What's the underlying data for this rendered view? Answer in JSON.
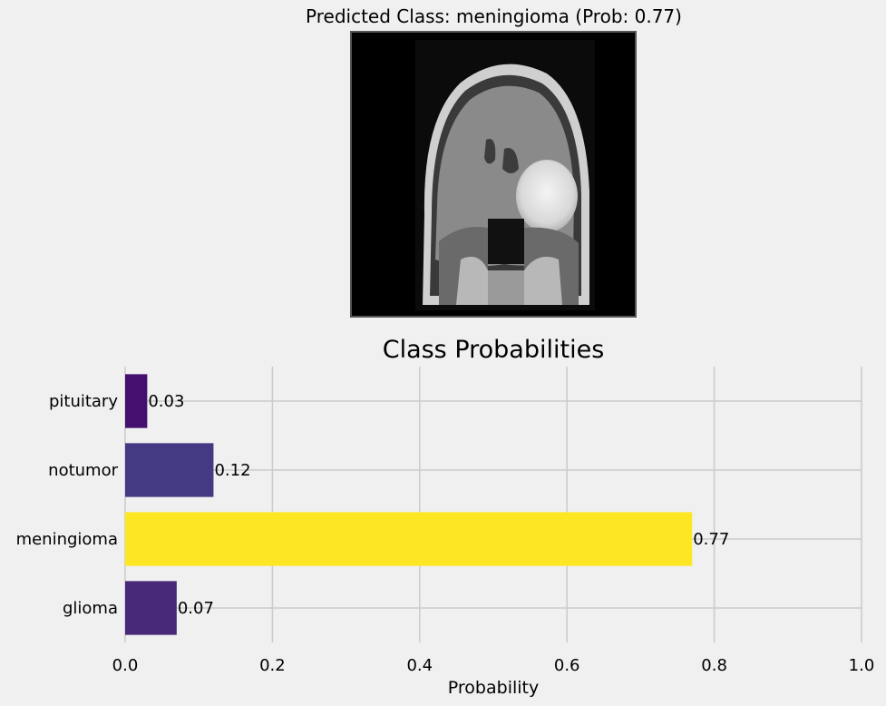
{
  "figure_title": "Predicted Class: meningioma (Prob: 0.77)",
  "image": {
    "icon": "mri-brain-scan-image"
  },
  "chart_data": {
    "type": "bar",
    "orientation": "horizontal",
    "title": "Class Probabilities",
    "xlabel": "Probability",
    "ylabel": "",
    "categories": [
      "glioma",
      "meningioma",
      "notumor",
      "pituitary"
    ],
    "values": [
      0.07,
      0.77,
      0.12,
      0.03
    ],
    "value_labels": [
      "0.07",
      "0.77",
      "0.12",
      "0.03"
    ],
    "colors": [
      "#482878",
      "#fde725",
      "#443a83",
      "#440f6e"
    ],
    "xlim": [
      0,
      1.0
    ],
    "xticks": [
      0.0,
      0.2,
      0.4,
      0.6,
      0.8,
      1.0
    ],
    "xtick_labels": [
      "0.0",
      "0.2",
      "0.4",
      "0.6",
      "0.8",
      "1.0"
    ],
    "grid": true
  }
}
